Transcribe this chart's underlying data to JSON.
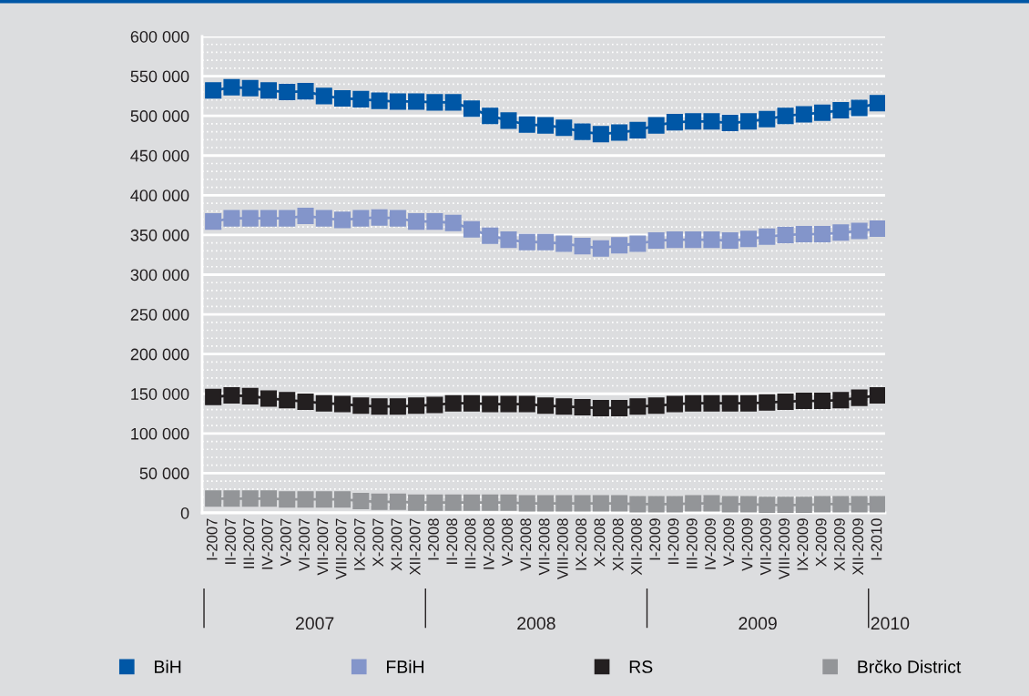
{
  "chart_data": {
    "type": "line",
    "categories": [
      "I-2007",
      "II-2007",
      "III-2007",
      "IV-2007",
      "V-2007",
      "VI-2007",
      "VII-2007",
      "VIII-2007",
      "IX-2007",
      "X-2007",
      "XI-2007",
      "XII-2007",
      "I-2008",
      "II-2008",
      "III-2008",
      "IV-2008",
      "V-2008",
      "VI-2008",
      "VII-2008",
      "VIII-2008",
      "IX-2008",
      "X-2008",
      "XI-2008",
      "XII-2008",
      "I-2009",
      "II-2009",
      "III-2009",
      "IV-2009",
      "V-2009",
      "VI-2009",
      "VII-2009",
      "VIII-2009",
      "IX-2009",
      "X-2009",
      "XI-2009",
      "XII-2009",
      "I-2010"
    ],
    "series": [
      {
        "name": "BiH",
        "color": "#0057a6",
        "values": [
          532000,
          536000,
          535000,
          532000,
          530000,
          531000,
          525000,
          522000,
          521000,
          519000,
          518000,
          518000,
          517000,
          517000,
          509000,
          500000,
          494000,
          489000,
          488000,
          485000,
          480000,
          477000,
          479000,
          482000,
          488000,
          492000,
          493000,
          493000,
          491000,
          493000,
          496000,
          500000,
          502000,
          504000,
          507000,
          510000,
          516000
        ]
      },
      {
        "name": "FBiH",
        "color": "#8395ca",
        "values": [
          367000,
          371000,
          371000,
          371000,
          371000,
          374000,
          371000,
          369000,
          371000,
          372000,
          371000,
          367000,
          367000,
          365000,
          357000,
          349000,
          344000,
          341000,
          341000,
          339000,
          336000,
          333000,
          337000,
          339000,
          343000,
          344000,
          344000,
          344000,
          343000,
          345000,
          348000,
          350000,
          351000,
          351000,
          353000,
          355000,
          358000
        ]
      },
      {
        "name": "RS",
        "color": "#231f20",
        "values": [
          146000,
          148000,
          147000,
          144000,
          142000,
          140000,
          138000,
          137000,
          135000,
          134000,
          134000,
          135000,
          136000,
          138000,
          138000,
          137000,
          137000,
          137000,
          135000,
          134000,
          133000,
          132000,
          132000,
          134000,
          135000,
          137000,
          138000,
          138000,
          138000,
          138000,
          139000,
          140000,
          141000,
          141000,
          142000,
          145000,
          148000
        ]
      },
      {
        "name": "Brčko District",
        "color": "#939598",
        "values": [
          18000,
          18000,
          18000,
          18000,
          17000,
          17000,
          17000,
          17000,
          15000,
          14000,
          14000,
          13000,
          13000,
          13000,
          13000,
          13000,
          13000,
          12000,
          12000,
          12000,
          12000,
          12000,
          12000,
          11000,
          11000,
          11000,
          12000,
          12000,
          11000,
          11000,
          10000,
          10000,
          10000,
          11000,
          11000,
          11000,
          11000
        ]
      }
    ],
    "ylim": [
      0,
      600000
    ],
    "yticks": [
      {
        "value": 0,
        "label": "0"
      },
      {
        "value": 50000,
        "label": "50 000"
      },
      {
        "value": 100000,
        "label": "100 000"
      },
      {
        "value": 150000,
        "label": "150 000"
      },
      {
        "value": 200000,
        "label": "200 000"
      },
      {
        "value": 250000,
        "label": "250 000"
      },
      {
        "value": 300000,
        "label": "300 000"
      },
      {
        "value": 350000,
        "label": "350 000"
      },
      {
        "value": 400000,
        "label": "400 000"
      },
      {
        "value": 450000,
        "label": "450 000"
      },
      {
        "value": 500000,
        "label": "500 000"
      },
      {
        "value": 550000,
        "label": "550 000"
      },
      {
        "value": 600000,
        "label": "600 000"
      }
    ],
    "annotations": [
      "2007",
      "2008",
      "2009",
      "2010"
    ],
    "grid": "y",
    "legend": "bottom",
    "marker": "square",
    "line_style": "solid"
  }
}
